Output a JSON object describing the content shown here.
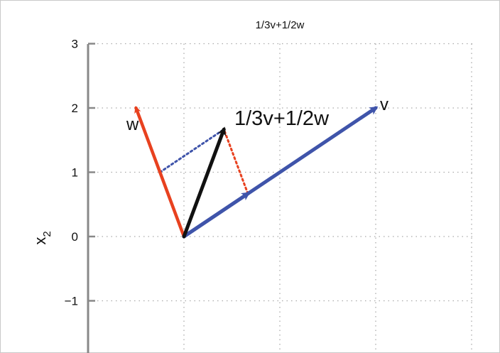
{
  "chart_data": {
    "type": "vector-plot",
    "title": "1/3v+1/2w",
    "ylabel": "x",
    "ylabel_subscript": "2",
    "xlim": [
      -1.0,
      3.0
    ],
    "ylim": [
      -1.5,
      3.0
    ],
    "y_ticks": [
      3,
      2,
      1,
      0,
      -1
    ],
    "y_tick_labels": [
      "3",
      "2",
      "1",
      "0",
      "−1"
    ],
    "x_grid": [
      -1,
      0,
      1,
      2,
      3
    ],
    "y_grid": [
      -1,
      0,
      1,
      2,
      3
    ],
    "grid": true,
    "vectors": [
      {
        "key": "w",
        "label": "w",
        "from": [
          0,
          0
        ],
        "to": [
          -0.5,
          2.0
        ],
        "color": "#e8411f"
      },
      {
        "key": "v",
        "label": "v",
        "from": [
          0,
          0
        ],
        "to": [
          2.0,
          2.0
        ],
        "color": "#3f54aa"
      },
      {
        "key": "v_third",
        "label": "",
        "from": [
          0,
          0
        ],
        "to": [
          0.6667,
          0.6667
        ],
        "color": "#3f54aa"
      },
      {
        "key": "sum",
        "label": "1/3v+1/2w",
        "from": [
          0,
          0
        ],
        "to": [
          0.4167,
          1.6667
        ],
        "color": "#111111"
      }
    ],
    "guides": [
      {
        "key": "w_half_guide",
        "from": [
          -0.25,
          1.0
        ],
        "to": [
          0.4167,
          1.6667
        ],
        "color": "#3f54aa",
        "style": "dotted"
      },
      {
        "key": "v_third_guide",
        "from": [
          0.6667,
          0.6667
        ],
        "to": [
          0.4167,
          1.6667
        ],
        "color": "#e8411f",
        "style": "dotted"
      }
    ],
    "colors": {
      "axis": "#888888",
      "grid": "#aaaaaa",
      "w": "#e8411f",
      "v": "#3f54aa",
      "sum": "#111111"
    }
  }
}
